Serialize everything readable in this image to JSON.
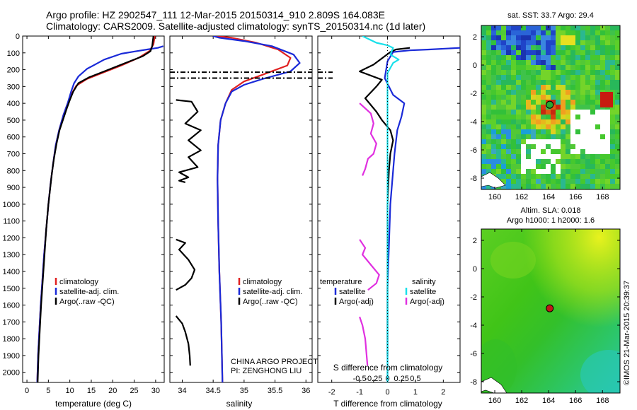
{
  "header": {
    "title_line1": "Argo profile: HZ 2902547_111 12-Mar-2015 20150314_910 2.809S 164.083E",
    "title_line2": "Climatology: CARS2009. Satellite-adjusted climatology: synTS_20150314.nc (1d later)"
  },
  "colors": {
    "climatology": "#e02020",
    "satellite": "#1a2ad8",
    "argo": "#000000",
    "satellite_salinity": "#19e0ea",
    "argo_salinity_adj": "#e030e0"
  },
  "shared": {
    "depth_ticks": [
      0,
      100,
      200,
      300,
      400,
      500,
      600,
      700,
      800,
      900,
      1000,
      1100,
      1200,
      1300,
      1400,
      1500,
      1600,
      1700,
      1800,
      1900,
      2000
    ],
    "depth_range": [
      0,
      2060
    ]
  },
  "chart_data": [
    {
      "type": "line",
      "id": "temperature",
      "xlabel": "temperature (deg C)",
      "ylabel": "",
      "xlim": [
        -1,
        32
      ],
      "xticks": [
        0,
        5,
        10,
        15,
        20,
        25,
        30
      ],
      "ylim": [
        2060,
        0
      ],
      "legend": {
        "position": "lower-right",
        "entries": [
          "climatology",
          "satellite-adj. clim.",
          "Argo(..raw -QC)"
        ]
      },
      "series": [
        {
          "name": "climatology",
          "color": "#e02020",
          "points": [
            [
              29.8,
              0
            ],
            [
              29.5,
              50
            ],
            [
              28.5,
              90
            ],
            [
              26,
              130
            ],
            [
              22,
              175
            ],
            [
              18,
              215
            ],
            [
              14,
              255
            ],
            [
              11.5,
              295
            ],
            [
              10.5,
              340
            ],
            [
              9.5,
              400
            ],
            [
              8.5,
              470
            ],
            [
              7.5,
              560
            ],
            [
              6.7,
              650
            ],
            [
              6.1,
              760
            ],
            [
              5.5,
              880
            ],
            [
              5,
              1000
            ],
            [
              4.5,
              1150
            ],
            [
              4,
              1300
            ],
            [
              3.6,
              1450
            ],
            [
              3.2,
              1600
            ],
            [
              2.9,
              1750
            ],
            [
              2.6,
              1900
            ],
            [
              2.4,
              2060
            ]
          ]
        },
        {
          "name": "satellite-adj. clim.",
          "color": "#1a2ad8",
          "points": [
            [
              31.8,
              60
            ],
            [
              30.5,
              70
            ],
            [
              28,
              80
            ],
            [
              25,
              92
            ],
            [
              22,
              105
            ],
            [
              18,
              140
            ],
            [
              14,
              195
            ],
            [
              12,
              240
            ],
            [
              11,
              280
            ],
            [
              10.3,
              330
            ],
            [
              9.5,
              400
            ],
            [
              8.5,
              470
            ],
            [
              7.5,
              560
            ],
            [
              6.7,
              650
            ],
            [
              6.1,
              760
            ],
            [
              5.5,
              880
            ],
            [
              5,
              1000
            ],
            [
              4.5,
              1150
            ],
            [
              4,
              1300
            ],
            [
              3.6,
              1450
            ],
            [
              3.2,
              1600
            ],
            [
              2.9,
              1750
            ],
            [
              2.6,
              1900
            ],
            [
              2.4,
              2060
            ]
          ]
        },
        {
          "name": "Argo(..raw -QC)",
          "color": "#000000",
          "points": [
            [
              29.5,
              0
            ],
            [
              29.2,
              60
            ],
            [
              28.8,
              90
            ],
            [
              27,
              120
            ],
            [
              22,
              170
            ],
            [
              18,
              210
            ],
            [
              14.5,
              245
            ],
            [
              12,
              280
            ],
            [
              10.8,
              330
            ],
            [
              10,
              380
            ],
            [
              9.3,
              430
            ],
            [
              8.5,
              490
            ],
            [
              7.6,
              560
            ],
            [
              6.9,
              640
            ],
            [
              6.3,
              730
            ],
            [
              5.8,
              820
            ],
            [
              5.4,
              910
            ],
            [
              5,
              1000
            ],
            [
              4.5,
              1150
            ],
            [
              4.1,
              1300
            ],
            [
              3.7,
              1450
            ],
            [
              3.3,
              1600
            ],
            [
              3,
              1750
            ],
            [
              2.7,
              1900
            ],
            [
              2.5,
              2060
            ]
          ]
        }
      ]
    },
    {
      "type": "line",
      "id": "salinity",
      "xlabel": "salinity",
      "ylabel": "",
      "xlim": [
        33.8,
        36.1
      ],
      "xticks": [
        34,
        34.5,
        35,
        35.5,
        36
      ],
      "xtick_labels": [
        "34",
        "34.5",
        "35",
        "35.5",
        "36"
      ],
      "ylim": [
        2060,
        0
      ],
      "legend": {
        "position": "lower-right",
        "entries": [
          "climatology",
          "satellite-adj. clim.",
          "Argo(..raw -QC)"
        ]
      },
      "series": [
        {
          "name": "climatology",
          "color": "#e02020",
          "points": [
            [
              34.55,
              0
            ],
            [
              34.8,
              10
            ],
            [
              35.2,
              40
            ],
            [
              35.55,
              80
            ],
            [
              35.75,
              130
            ],
            [
              35.7,
              175
            ],
            [
              35.3,
              230
            ],
            [
              35,
              270
            ],
            [
              34.8,
              320
            ],
            [
              34.7,
              400
            ],
            [
              34.62,
              500
            ],
            [
              34.58,
              650
            ],
            [
              34.57,
              850
            ],
            [
              34.58,
              1100
            ],
            [
              34.6,
              1400
            ],
            [
              34.63,
              1700
            ],
            [
              34.65,
              2060
            ]
          ]
        },
        {
          "name": "satellite-adj. clim.",
          "color": "#1a2ad8",
          "points": [
            [
              34.5,
              0
            ],
            [
              34.6,
              10
            ],
            [
              35,
              30
            ],
            [
              35.45,
              60
            ],
            [
              35.8,
              110
            ],
            [
              35.9,
              160
            ],
            [
              35.75,
              210
            ],
            [
              35.3,
              255
            ],
            [
              35,
              290
            ],
            [
              34.8,
              330
            ],
            [
              34.7,
              400
            ],
            [
              34.62,
              500
            ],
            [
              34.58,
              650
            ],
            [
              34.57,
              850
            ],
            [
              34.58,
              1100
            ],
            [
              34.6,
              1400
            ],
            [
              34.63,
              1700
            ],
            [
              34.65,
              2060
            ]
          ]
        },
        {
          "name": "Argo(..raw -QC)",
          "color": "#000000",
          "points": [
            [
              33.9,
              380
            ],
            [
              34.15,
              390
            ],
            [
              34.25,
              450
            ],
            [
              34.05,
              520
            ],
            [
              34.3,
              560
            ],
            [
              34.1,
              620
            ],
            [
              34.3,
              680
            ],
            [
              34.1,
              720
            ],
            [
              34.25,
              780
            ],
            [
              33.95,
              810
            ],
            [
              34.1,
              840
            ],
            [
              33.95,
              860
            ],
            [
              34.05,
              870
            ]
          ]
        },
        {
          "name": "Argo(..raw -QC)",
          "color": "#000000",
          "points": [
            [
              33.9,
              1210
            ],
            [
              34.05,
              1230
            ],
            [
              33.95,
              1270
            ],
            [
              34.1,
              1330
            ],
            [
              34.2,
              1390
            ],
            [
              34.15,
              1440
            ],
            [
              34.05,
              1480
            ],
            [
              33.9,
              1510
            ]
          ]
        },
        {
          "name": "Argo(..raw -QC)",
          "color": "#000000",
          "points": [
            [
              33.9,
              1665
            ],
            [
              34.0,
              1710
            ],
            [
              34.05,
              1760
            ],
            [
              34.1,
              1830
            ],
            [
              34.12,
              1900
            ],
            [
              34.13,
              1960
            ]
          ]
        }
      ],
      "ml_lines": [
        {
          "depth": 215,
          "x0": 33.8,
          "x1": 36.1
        },
        {
          "depth": 250,
          "x0": 33.8,
          "x1": 36.1
        }
      ]
    },
    {
      "type": "line",
      "id": "difference",
      "xlabel": "T difference from climatology",
      "xlabel_top": "S difference from climatology",
      "ylabel": "",
      "xlim": [
        -2.5,
        2.6
      ],
      "xticks": [
        -2,
        -1,
        0,
        1,
        2
      ],
      "xtick_labels": [
        "-2",
        "-1",
        "0",
        "1",
        "2"
      ],
      "xticks_S": [
        -0.5,
        -0.25,
        0,
        0.25,
        0.5
      ],
      "xtick_labels_S": [
        "-0.5",
        "-0.25",
        "0",
        "0.25",
        "0.5"
      ],
      "S_scale": 2,
      "ylim": [
        2060,
        0
      ],
      "legend": {
        "position": "lower-left",
        "temperature_title": "temperature",
        "salinity_title": "salinity",
        "temperature_entries": [
          "satellite",
          "Argo(-adj)"
        ],
        "salinity_entries": [
          "satellite",
          "Argo(-adj)"
        ]
      },
      "series": [
        {
          "name": "satellite",
          "quantity": "temperature",
          "color": "#1a2ad8",
          "points": [
            [
              2.6,
              70
            ],
            [
              1.5,
              80
            ],
            [
              0.8,
              85
            ],
            [
              0.2,
              95
            ],
            [
              0,
              150
            ],
            [
              -0.1,
              250
            ],
            [
              0.2,
              350
            ],
            [
              0.6,
              400
            ],
            [
              0.5,
              480
            ],
            [
              0.35,
              560
            ],
            [
              0.25,
              700
            ],
            [
              0.1,
              1000
            ],
            [
              0,
              1500
            ],
            [
              0,
              2060
            ]
          ]
        },
        {
          "name": "Argo(-adj)",
          "quantity": "temperature",
          "color": "#000000",
          "points": [
            [
              0.8,
              70
            ],
            [
              0.3,
              80
            ],
            [
              0.1,
              95
            ],
            [
              -0.5,
              170
            ],
            [
              -1,
              210
            ],
            [
              -0.2,
              260
            ],
            [
              -0.4,
              300
            ],
            [
              -0.8,
              370
            ],
            [
              -0.4,
              450
            ],
            [
              -0.2,
              500
            ],
            [
              0.1,
              560
            ],
            [
              0.2,
              620
            ],
            [
              0.1,
              700
            ],
            [
              0.05,
              800
            ],
            [
              0,
              1000
            ],
            [
              0,
              1500
            ],
            [
              0,
              1900
            ]
          ]
        },
        {
          "name": "satellite",
          "quantity": "salinity",
          "color": "#19e0ea",
          "points": [
            [
              -0.45,
              0
            ],
            [
              -0.2,
              40
            ],
            [
              0,
              55
            ],
            [
              0.1,
              70
            ],
            [
              0.05,
              110
            ],
            [
              0.2,
              140
            ],
            [
              0.1,
              160
            ],
            [
              0,
              220
            ],
            [
              0,
              300
            ],
            [
              0,
              400
            ],
            [
              0,
              600
            ],
            [
              0,
              900
            ],
            [
              0,
              1300
            ],
            [
              0,
              2060
            ]
          ]
        },
        {
          "name": "Argo(-adj)",
          "quantity": "salinity",
          "color": "#e030e0",
          "points": [
            [
              -0.5,
              400
            ],
            [
              -0.3,
              460
            ],
            [
              -0.25,
              520
            ],
            [
              -0.3,
              580
            ],
            [
              -0.2,
              640
            ],
            [
              -0.25,
              700
            ],
            [
              -0.35,
              730
            ],
            [
              -0.4,
              790
            ],
            [
              -0.45,
              830
            ]
          ]
        },
        {
          "name": "Argo(-adj)",
          "quantity": "salinity",
          "color": "#e030e0",
          "points": [
            [
              -0.5,
              1210
            ],
            [
              -0.4,
              1260
            ],
            [
              -0.45,
              1300
            ],
            [
              -0.3,
              1360
            ],
            [
              -0.15,
              1420
            ],
            [
              -0.2,
              1470
            ],
            [
              -0.35,
              1510
            ]
          ]
        },
        {
          "name": "Argo(-adj)",
          "quantity": "salinity",
          "color": "#e030e0",
          "points": [
            [
              -0.5,
              1670
            ],
            [
              -0.45,
              1720
            ],
            [
              -0.4,
              1800
            ],
            [
              -0.38,
              1880
            ],
            [
              -0.36,
              1960
            ]
          ]
        }
      ],
      "zero_line": true
    },
    {
      "type": "heatmap",
      "id": "sst_map",
      "title": "sat. SST: 33.7 Argo: 29.4",
      "xlim": [
        159,
        169.3
      ],
      "ylim": [
        -8.8,
        2.8
      ],
      "xticks": [
        160,
        162,
        164,
        166,
        168
      ],
      "yticks": [
        2,
        0,
        -2,
        -4,
        -6,
        -8
      ],
      "marker": {
        "lon": 164.083,
        "lat": -2.809
      }
    },
    {
      "type": "heatmap",
      "id": "sla_map",
      "title_line1": "Altim. SLA: 0.018",
      "title_line2": "Argo h1000: 1 h2000: 1.6",
      "xlim": [
        159,
        169.3
      ],
      "ylim": [
        -8.8,
        2.8
      ],
      "xticks": [
        160,
        162,
        164,
        166,
        168
      ],
      "yticks": [
        2,
        0,
        -2,
        -4,
        -6,
        -8
      ],
      "marker": {
        "lon": 164.083,
        "lat": -2.809
      }
    }
  ],
  "credits": {
    "project": "CHINA ARGO PROJECT",
    "pi": "PI: ZENGHONG LIU",
    "stamp": "©IMOS 21-Mar-2015 20:39:37"
  }
}
